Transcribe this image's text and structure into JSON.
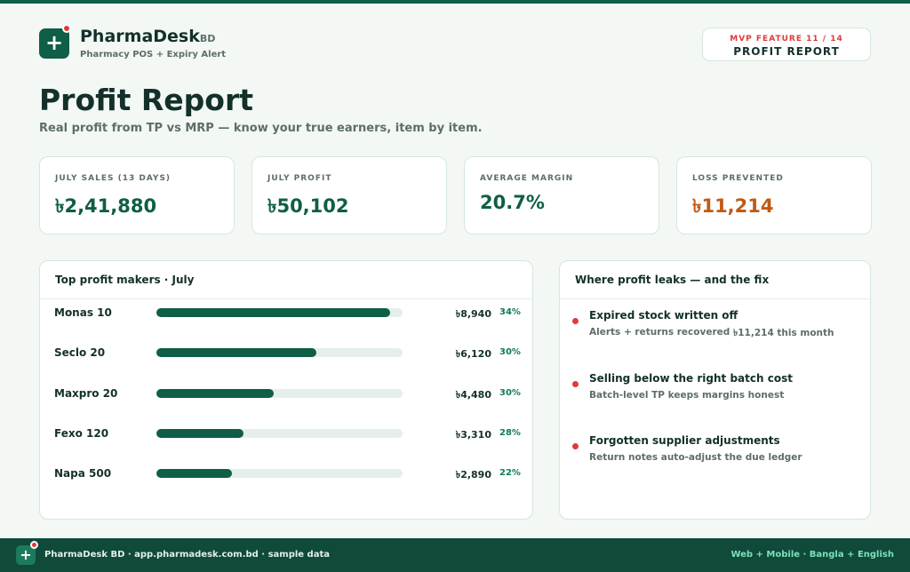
{
  "header": {
    "brand": "PharmaDesk",
    "brand_suffix": "BD",
    "tagline": "Pharmacy POS + Expiry Alert",
    "badge_top": "MVP FEATURE 11 / 14",
    "badge_bottom": "PROFIT REPORT"
  },
  "page": {
    "title": "Profit Report",
    "subtitle": "Real profit from TP vs MRP — know your true earners, item by item."
  },
  "kpis": [
    {
      "label": "JULY SALES (13 DAYS)",
      "value": "৳2,41,880"
    },
    {
      "label": "JULY PROFIT",
      "value": "৳50,102"
    },
    {
      "label": "AVERAGE MARGIN",
      "value": "20.7%"
    },
    {
      "label": "LOSS PREVENTED",
      "value": "৳11,214"
    }
  ],
  "top_profit": {
    "title": "Top profit makers · July",
    "categories": [
      "Monas 10",
      "Seclo 20",
      "Maxpro 20",
      "Fexo 120",
      "Napa 500"
    ],
    "values": [
      8940,
      6120,
      4480,
      3310,
      2890
    ],
    "value_labels": [
      "৳8,940",
      "৳6,120",
      "৳4,480",
      "৳3,310",
      "৳2,890"
    ],
    "margins": [
      "34%",
      "30%",
      "30%",
      "28%",
      "22%"
    ],
    "xlim": [
      0,
      9400
    ],
    "color": "#0f5e47"
  },
  "leaks": {
    "title": "Where profit leaks — and the fix",
    "items": [
      {
        "title": "Expired stock written off",
        "note": "Alerts + returns recovered",
        "extra": "৳11,214 this month"
      },
      {
        "title": "Selling below the right batch cost",
        "note": "Batch-level TP keeps margins honest"
      },
      {
        "title": "Forgotten supplier adjustments",
        "note": "Return notes auto-adjust the due ledger"
      }
    ]
  },
  "footer": {
    "left": "PharmaDesk BD · app.pharmadesk.com.bd · sample data",
    "right": "Web + Mobile · Bangla + English"
  }
}
